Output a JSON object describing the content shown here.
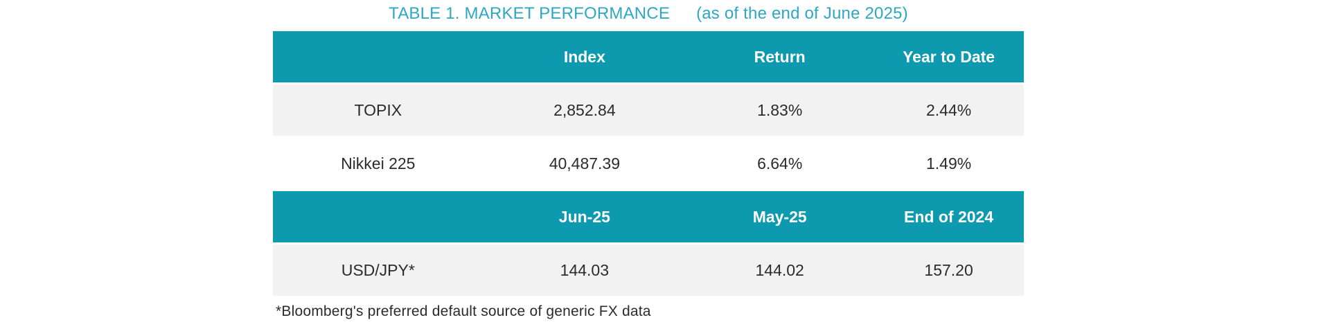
{
  "title": {
    "main": "TABLE 1. MARKET PERFORMANCE",
    "subtitle": "(as of the end of June 2025)"
  },
  "colors": {
    "header_bg": "#0d99ae",
    "header_text": "#ffffff",
    "title_text": "#2ea7c2",
    "row_shade_bg": "#f2f2f2",
    "row_plain_bg": "#ffffff",
    "data_text": "#2b2b2b"
  },
  "index_table": {
    "headers": [
      "",
      "Index",
      "Return",
      "Year to Date"
    ],
    "rows": [
      {
        "label": "TOPIX",
        "values": [
          "2,852.84",
          "1.83%",
          "2.44%"
        ]
      },
      {
        "label": "Nikkei 225",
        "values": [
          "40,487.39",
          "6.64%",
          "1.49%"
        ]
      }
    ]
  },
  "fx_table": {
    "headers": [
      "",
      "Jun-25",
      "May-25",
      "End of 2024"
    ],
    "rows": [
      {
        "label": "USD/JPY*",
        "values": [
          "144.03",
          "144.02",
          "157.20"
        ]
      }
    ]
  },
  "footnote": "*Bloomberg's preferred default source of generic FX data"
}
